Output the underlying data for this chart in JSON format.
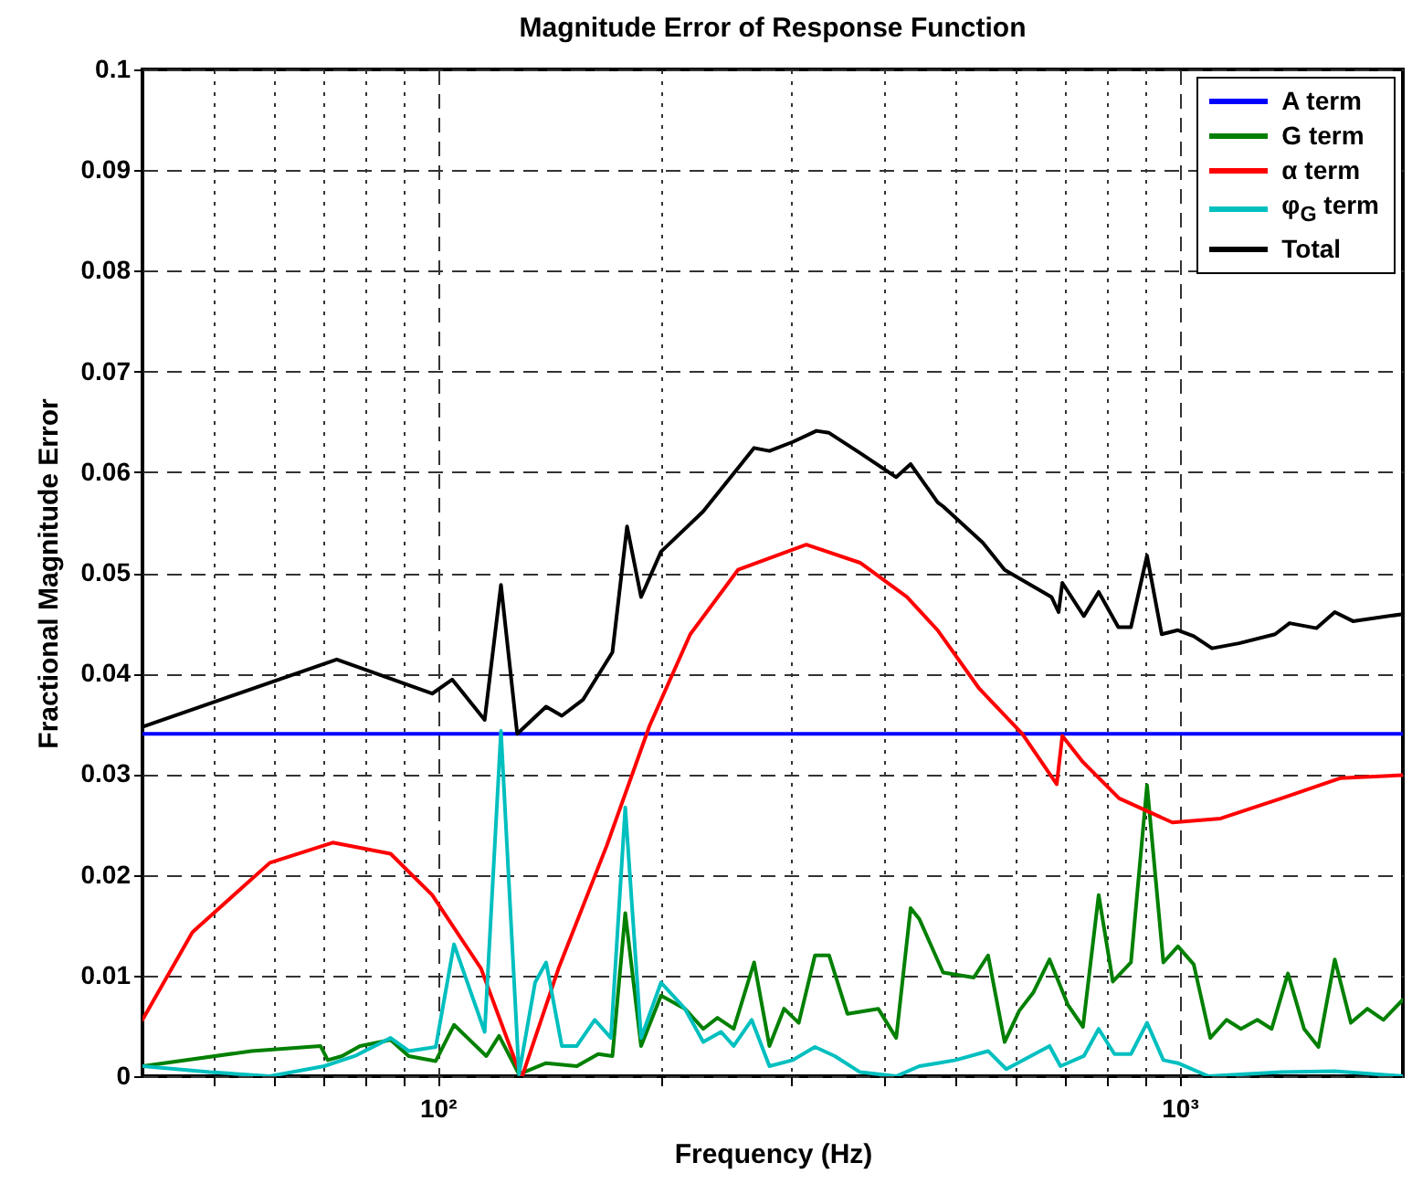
{
  "chart_data": {
    "type": "line",
    "title": "Magnitude Error of Response Function",
    "xlabel": "Frequency (Hz)",
    "ylabel": "Fractional Magnitude Error",
    "log": "x",
    "grid": true,
    "legend": "top right",
    "xlim": [
      40,
      2000
    ],
    "xticks": [
      {
        "value": 50,
        "label": null
      },
      {
        "value": 60,
        "label": null
      },
      {
        "value": 70,
        "label": null
      },
      {
        "value": 80,
        "label": null
      },
      {
        "value": 90,
        "label": null
      },
      {
        "value": 100,
        "label": "10²"
      },
      {
        "value": 200,
        "label": null
      },
      {
        "value": 300,
        "label": null
      },
      {
        "value": 400,
        "label": null
      },
      {
        "value": 500,
        "label": null
      },
      {
        "value": 600,
        "label": null
      },
      {
        "value": 700,
        "label": null
      },
      {
        "value": 800,
        "label": null
      },
      {
        "value": 900,
        "label": null
      },
      {
        "value": 1000,
        "label": "10³"
      }
    ],
    "ylim": [
      0,
      0.1
    ],
    "yticks": [
      0,
      0.01,
      0.02,
      0.03,
      0.04,
      0.05,
      0.06,
      0.07,
      0.08,
      0.09,
      0.1
    ],
    "series": [
      {
        "name": "A term",
        "color": "#0000ff",
        "x": [
          40,
          2000
        ],
        "values": [
          0.034,
          0.034
        ]
      },
      {
        "name": "G term",
        "color": "#008000",
        "x": [
          40,
          56.1,
          69.5,
          71.1,
          74.3,
          78.6,
          86.4,
          91.4,
          99.4,
          105.2,
          116.3,
          121,
          128.7,
          140,
          154,
          164.6,
          172,
          179,
          188,
          200,
          215.4,
          228,
          238.3,
          250.6,
          267,
          280,
          293,
          306.7,
          322.5,
          337,
          356.7,
          392.5,
          415,
          434,
          446,
          480,
          528,
          552,
          581,
          608,
          635,
          668,
          707,
          741,
          778,
          813,
          860,
          904,
          951,
          995,
          1045,
          1100,
          1157,
          1210,
          1273,
          1331,
          1400,
          1472,
          1539,
          1619,
          1702,
          1791,
          1883,
          2000
        ],
        "values": [
          0.001,
          0.0025,
          0.003,
          0.0016,
          0.002,
          0.003,
          0.0036,
          0.002,
          0.0015,
          0.0051,
          0.002,
          0.004,
          0.0002,
          0.0013,
          0.001,
          0.0022,
          0.002,
          0.0162,
          0.003,
          0.008,
          0.0067,
          0.0047,
          0.0058,
          0.0047,
          0.0113,
          0.003,
          0.0067,
          0.0053,
          0.012,
          0.012,
          0.0062,
          0.0067,
          0.0038,
          0.0167,
          0.0156,
          0.0103,
          0.0098,
          0.012,
          0.0034,
          0.0065,
          0.0083,
          0.0116,
          0.0071,
          0.0049,
          0.018,
          0.0094,
          0.0113,
          0.0289,
          0.0113,
          0.0129,
          0.0111,
          0.0038,
          0.0056,
          0.0047,
          0.0056,
          0.0047,
          0.0102,
          0.0047,
          0.0029,
          0.0116,
          0.0053,
          0.0067,
          0.0056,
          0.0076
        ]
      },
      {
        "name": "α term",
        "color": "#ff0000",
        "x": [
          40,
          46.7,
          59.4,
          72.2,
          86.4,
          98.3,
          114.4,
          128,
          130,
          145.5,
          169,
          193,
          219,
          254,
          314,
          371,
          429,
          472,
          537,
          614,
          683,
          695,
          741,
          829,
          978,
          1136,
          1372,
          1646,
          2000
        ],
        "values": [
          0.0056,
          0.0143,
          0.0212,
          0.0232,
          0.0221,
          0.018,
          0.0107,
          0.001,
          0,
          0.0107,
          0.0229,
          0.0348,
          0.0439,
          0.0503,
          0.0528,
          0.051,
          0.0476,
          0.0443,
          0.0385,
          0.034,
          0.029,
          0.0338,
          0.0312,
          0.0276,
          0.0252,
          0.0256,
          0.0276,
          0.0296,
          0.0299
        ]
      },
      {
        "name": "φ$_{G}$ term",
        "color": "#00bfbf",
        "x": [
          40,
          49.3,
          59.4,
          70.3,
          77.3,
          86.4,
          91.4,
          99.4,
          105.2,
          115.7,
          121.7,
          128.7,
          135.3,
          140,
          147,
          154,
          162.8,
          171.2,
          179,
          188,
          200,
          215.4,
          228,
          241,
          250.6,
          265,
          280,
          301,
          322.5,
          343,
          371,
          415,
          446,
          472,
          499,
          552,
          584,
          668,
          691,
          743,
          778,
          817,
          860,
          904,
          951,
          995,
          1094,
          1372,
          1619,
          2000
        ],
        "values": [
          0.001,
          0.0004,
          0,
          0.001,
          0.002,
          0.0038,
          0.0025,
          0.0029,
          0.0131,
          0.0044,
          0.0343,
          0.0002,
          0.0093,
          0.0113,
          0.003,
          0.003,
          0.0056,
          0.0038,
          0.0267,
          0.0038,
          0.0093,
          0.0067,
          0.0034,
          0.0044,
          0.003,
          0.0056,
          0.001,
          0.0016,
          0.0029,
          0.002,
          0.0004,
          0,
          0.001,
          0.0013,
          0.0016,
          0.0025,
          0.0007,
          0.003,
          0.001,
          0.002,
          0.0047,
          0.0022,
          0.0022,
          0.0053,
          0.0016,
          0.0013,
          0,
          0.0004,
          0.0005,
          0
        ]
      },
      {
        "name": "Total",
        "color": "#000000",
        "x": [
          40,
          73.1,
          98.3,
          104.6,
          115.7,
          121.7,
          128,
          140,
          147,
          157,
          172,
          180,
          188,
          200,
          228,
          267,
          280,
          301,
          324,
          337,
          371,
          415,
          434,
          472,
          480,
          543,
          581,
          672,
          687,
          695,
          743,
          778,
          827,
          860,
          904,
          946,
          995,
          1045,
          1106,
          1203,
          1345,
          1407,
          1530,
          1619,
          1713,
          2000
        ],
        "values": [
          0.0347,
          0.0414,
          0.038,
          0.0394,
          0.0354,
          0.0488,
          0.034,
          0.0367,
          0.0358,
          0.0374,
          0.0421,
          0.0546,
          0.0476,
          0.0521,
          0.0561,
          0.0624,
          0.0621,
          0.063,
          0.0641,
          0.0639,
          0.0619,
          0.0595,
          0.0608,
          0.057,
          0.0566,
          0.053,
          0.0503,
          0.0476,
          0.0461,
          0.049,
          0.0457,
          0.0481,
          0.0446,
          0.0446,
          0.0517,
          0.0439,
          0.0443,
          0.0437,
          0.0425,
          0.043,
          0.0439,
          0.045,
          0.0445,
          0.0461,
          0.0452,
          0.0459
        ]
      }
    ]
  }
}
